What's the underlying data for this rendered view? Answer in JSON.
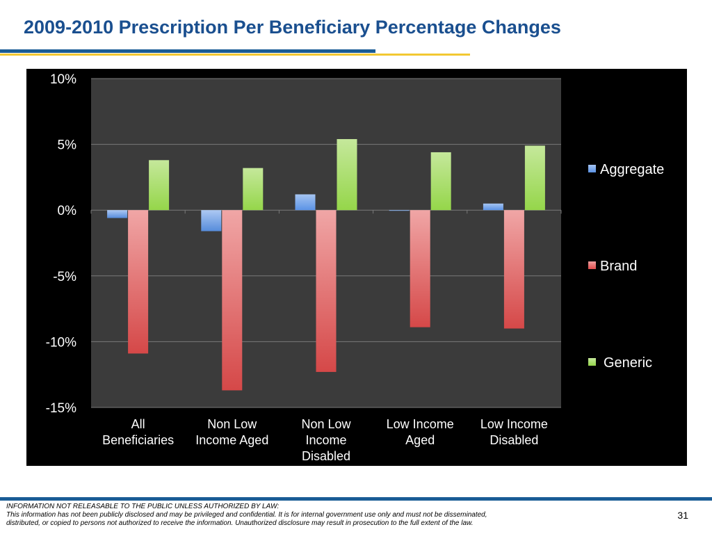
{
  "slide": {
    "title": "2009-2010 Prescription Per Beneficiary Percentage  Changes",
    "page_number": "31"
  },
  "footer": {
    "line1": "INFORMATION NOT RELEASABLE TO THE PUBLIC UNLESS AUTHORIZED BY LAW:",
    "line2": "This information has not been publicly disclosed and may be privileged and confidential.  It is for internal government use only and must not be disseminated,",
    "line3": "distributed, or copied to persons not authorized to receive the information.  Unauthorized disclosure may result in prosecution to the full extent of the law."
  },
  "colors": {
    "panel": "#000000",
    "plot_area": "#3b3b3b",
    "gridline": "#7a7a7a",
    "text": "#ffffff",
    "aggregate": "#5b93e6",
    "brand": "#e04c4c",
    "generic": "#95d64a"
  },
  "chart_data": {
    "type": "bar",
    "title": "",
    "xlabel": "",
    "ylabel": "",
    "categories": [
      [
        "All",
        "Beneficiaries"
      ],
      [
        "Non Low",
        "Income Aged"
      ],
      [
        "Non Low",
        "Income",
        "Disabled"
      ],
      [
        "Low Income",
        "Aged"
      ],
      [
        "Low Income",
        "Disabled"
      ]
    ],
    "series": [
      {
        "name": "Aggregate",
        "color": "#5b93e6",
        "values": [
          -0.6,
          -1.6,
          1.2,
          0.0,
          0.5
        ]
      },
      {
        "name": "Brand",
        "color": "#e04c4c",
        "values": [
          -10.9,
          -13.7,
          -12.3,
          -8.9,
          -9.0
        ]
      },
      {
        "name": "Generic",
        "color": "#95d64a",
        "values": [
          3.8,
          3.2,
          5.4,
          4.4,
          4.9
        ]
      }
    ],
    "ylim": [
      -15,
      10
    ],
    "yticks": [
      10,
      5,
      0,
      -5,
      -10,
      -15
    ],
    "ytick_labels": [
      "10%",
      "5%",
      "0%",
      "-5%",
      "-10%",
      "-15%"
    ],
    "grid": true,
    "legend_position": "right"
  }
}
